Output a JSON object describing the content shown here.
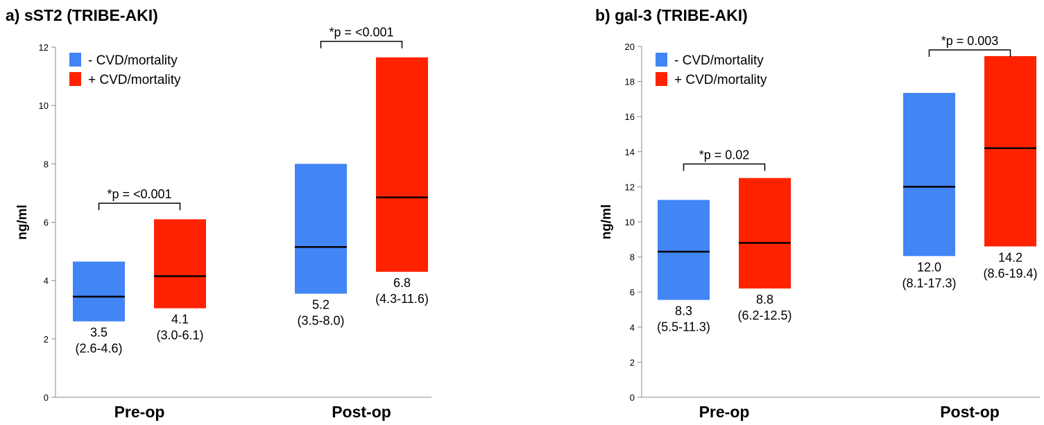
{
  "colors": {
    "no_event": "#4285f4",
    "event": "#ff2200",
    "median_line": "#000000",
    "axis": "#888888"
  },
  "chart_data": [
    {
      "type": "bar",
      "title": "a) sST2 (TRIBE-AKI)",
      "ylabel": "ng/ml",
      "xlabel": "",
      "ylim": [
        0,
        12
      ],
      "yticks": [
        "0",
        "2",
        "4",
        "6",
        "8",
        "10",
        "12"
      ],
      "categories": [
        "Pre-op",
        "Post-op"
      ],
      "grid": false,
      "legend_position": "top-left",
      "series": [
        {
          "name": "- CVD/mortality",
          "color": "#4285f4",
          "medians": [
            3.45,
            5.15
          ],
          "lows": [
            2.6,
            3.55
          ],
          "highs": [
            4.65,
            8.0
          ],
          "labels": [
            [
              "3.5",
              "(2.6-4.6)"
            ],
            [
              "5.2",
              "(3.5-8.0)"
            ]
          ]
        },
        {
          "name": "+ CVD/mortality",
          "color": "#ff2200",
          "medians": [
            4.15,
            6.85
          ],
          "lows": [
            3.05,
            4.3
          ],
          "highs": [
            6.1,
            11.65
          ],
          "labels": [
            [
              "4.1",
              "(3.0-6.1)"
            ],
            [
              "6.8",
              "(4.3-11.6)"
            ]
          ]
        }
      ],
      "annotations": [
        {
          "category_index": 0,
          "text": "*p = <0.001",
          "y": 6.65
        },
        {
          "category_index": 1,
          "text": "*p = <0.001",
          "y": 12.2
        }
      ]
    },
    {
      "type": "bar",
      "title": "b) gal-3 (TRIBE-AKI)",
      "ylabel": "ng/ml",
      "xlabel": "",
      "ylim": [
        0,
        20
      ],
      "yticks": [
        "0",
        "2",
        "4",
        "6",
        "8",
        "10",
        "12",
        "14",
        "16",
        "18",
        "20"
      ],
      "categories": [
        "Pre-op",
        "Post-op"
      ],
      "grid": false,
      "legend_position": "top-left",
      "series": [
        {
          "name": "- CVD/mortality",
          "color": "#4285f4",
          "medians": [
            8.3,
            12.0
          ],
          "lows": [
            5.55,
            8.05
          ],
          "highs": [
            11.25,
            17.35
          ],
          "labels": [
            [
              "8.3",
              "(5.5-11.3)"
            ],
            [
              "12.0",
              "(8.1-17.3)"
            ]
          ]
        },
        {
          "name": "+ CVD/mortality",
          "color": "#ff2200",
          "medians": [
            8.8,
            14.2
          ],
          "lows": [
            6.2,
            8.6
          ],
          "highs": [
            12.5,
            19.45
          ],
          "labels": [
            [
              "8.8",
              "(6.2-12.5)"
            ],
            [
              "14.2",
              "(8.6-19.4)"
            ]
          ]
        }
      ],
      "annotations": [
        {
          "category_index": 0,
          "text": "*p = 0.02",
          "y": 13.3
        },
        {
          "category_index": 1,
          "text": "*p = 0.003",
          "y": 19.8
        }
      ]
    }
  ]
}
